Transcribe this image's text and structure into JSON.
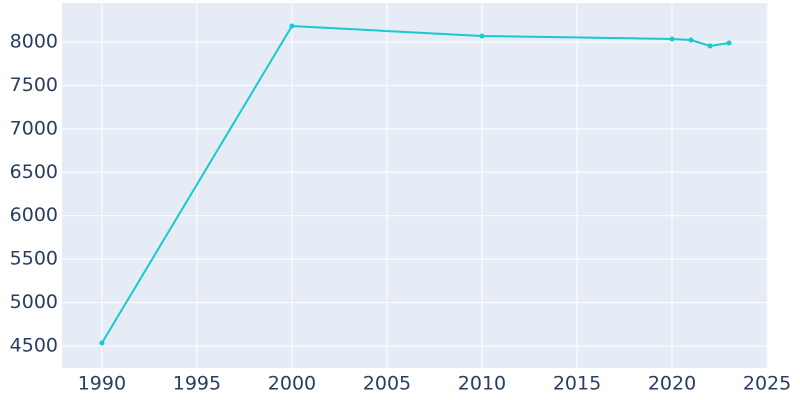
{
  "chart_data": {
    "type": "line",
    "x": [
      1990,
      2000,
      2010,
      2020,
      2021,
      2022,
      2023
    ],
    "series": [
      {
        "color": "#17c9d0",
        "values": [
          4535,
          8184,
          8069,
          8035,
          8023,
          7954,
          7988
        ]
      }
    ],
    "xlim": [
      1987.9,
      2025.05
    ],
    "xticks": [
      1990,
      1995,
      2000,
      2005,
      2010,
      2015,
      2020,
      2025
    ],
    "ylim": [
      4247,
      8449
    ],
    "yticks": [
      4500,
      5000,
      5500,
      6000,
      6500,
      7000,
      7500,
      8000
    ],
    "grid": true
  }
}
